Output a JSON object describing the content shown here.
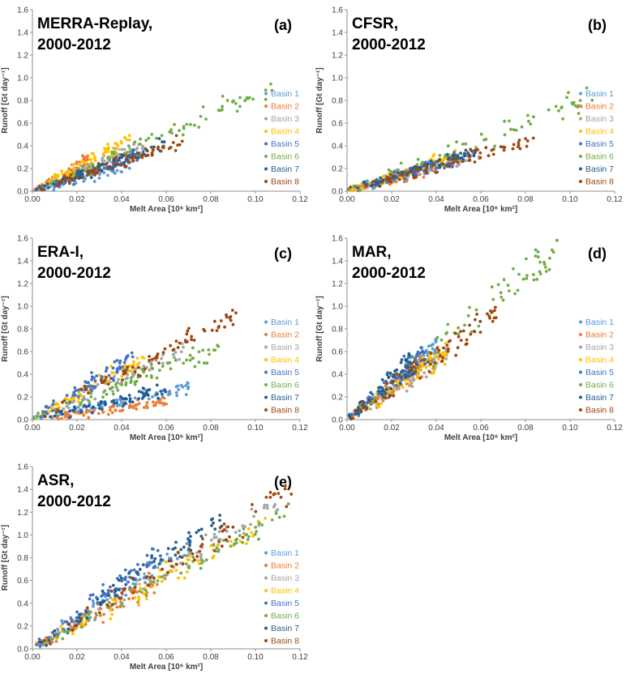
{
  "chart_data": [
    {
      "panel": "(a)",
      "type": "scatter",
      "title_lines": [
        "MERRA-Replay,",
        "2000-2012"
      ],
      "xlabel": "Melt Area [10⁶ km²]",
      "ylabel": "Runoff [Gt day⁻¹]",
      "xlim": [
        0,
        0.12
      ],
      "ylim": [
        0,
        1.6
      ],
      "xticks": [
        "0.00",
        "0.02",
        "0.04",
        "0.06",
        "0.08",
        "0.10",
        "0.12"
      ],
      "yticks": [
        "0.0",
        "0.2",
        "0.4",
        "0.6",
        "0.8",
        "1.0",
        "1.2",
        "1.4",
        "1.6"
      ],
      "legend": [
        "Basin 1",
        "Basin 2",
        "Basin 3",
        "Basin 4",
        "Basin 5",
        "Basin 6",
        "Basin 7",
        "Basin 8"
      ],
      "series": [
        {
          "name": "Basin 1",
          "xmax": 0.045,
          "slope": 5.5,
          "noise": 0.05
        },
        {
          "name": "Basin 2",
          "xmax": 0.025,
          "slope": 11.0,
          "noise": 0.05
        },
        {
          "name": "Basin 3",
          "xmax": 0.05,
          "slope": 8.0,
          "noise": 0.05
        },
        {
          "name": "Basin 4",
          "xmax": 0.045,
          "slope": 10.5,
          "noise": 0.06
        },
        {
          "name": "Basin 5",
          "xmax": 0.05,
          "slope": 6.5,
          "noise": 0.05
        },
        {
          "name": "Basin 6",
          "xmax": 0.108,
          "slope": 8.5,
          "noise": 0.07
        },
        {
          "name": "Basin 7",
          "xmax": 0.06,
          "slope": 7.0,
          "noise": 0.05
        },
        {
          "name": "Basin 8",
          "xmax": 0.068,
          "slope": 6.5,
          "noise": 0.05
        }
      ]
    },
    {
      "panel": "(b)",
      "type": "scatter",
      "title_lines": [
        "CFSR,",
        "2000-2012"
      ],
      "xlabel": "Melt Area [10⁶ km²]",
      "ylabel": "Runoff [Gt day⁻¹]",
      "xlim": [
        0,
        0.12
      ],
      "ylim": [
        0,
        1.6
      ],
      "xticks": [
        "0.00",
        "0.02",
        "0.04",
        "0.06",
        "0.08",
        "0.10",
        "0.12"
      ],
      "yticks": [
        "0.0",
        "0.2",
        "0.4",
        "0.6",
        "0.8",
        "1.0",
        "1.2",
        "1.4",
        "1.6"
      ],
      "legend": [
        "Basin 1",
        "Basin 2",
        "Basin 3",
        "Basin 4",
        "Basin 5",
        "Basin 6",
        "Basin 7",
        "Basin 8"
      ],
      "series": [
        {
          "name": "Basin 1",
          "xmax": 0.04,
          "slope": 6.0,
          "noise": 0.05
        },
        {
          "name": "Basin 2",
          "xmax": 0.05,
          "slope": 5.5,
          "noise": 0.05
        },
        {
          "name": "Basin 3",
          "xmax": 0.06,
          "slope": 5.5,
          "noise": 0.05
        },
        {
          "name": "Basin 4",
          "xmax": 0.05,
          "slope": 6.5,
          "noise": 0.05
        },
        {
          "name": "Basin 5",
          "xmax": 0.05,
          "slope": 6.0,
          "noise": 0.05
        },
        {
          "name": "Basin 6",
          "xmax": 0.112,
          "slope": 7.5,
          "noise": 0.09
        },
        {
          "name": "Basin 7",
          "xmax": 0.06,
          "slope": 6.0,
          "noise": 0.05
        },
        {
          "name": "Basin 8",
          "xmax": 0.085,
          "slope": 5.5,
          "noise": 0.05
        }
      ]
    },
    {
      "panel": "(c)",
      "type": "scatter",
      "title_lines": [
        "ERA-I,",
        "2000-2012"
      ],
      "xlabel": "Melt Area [10⁶ km²]",
      "ylabel": "Runoff [Gt day⁻¹]",
      "xlim": [
        0,
        0.12
      ],
      "ylim": [
        0,
        1.6
      ],
      "xticks": [
        "0.00",
        "0.02",
        "0.04",
        "0.06",
        "0.08",
        "0.10",
        "0.12"
      ],
      "yticks": [
        "0.0",
        "0.2",
        "0.4",
        "0.6",
        "0.8",
        "1.0",
        "1.2",
        "1.4",
        "1.6"
      ],
      "legend": [
        "Basin 1",
        "Basin 2",
        "Basin 3",
        "Basin 4",
        "Basin 5",
        "Basin 6",
        "Basin 7",
        "Basin 8"
      ],
      "series": [
        {
          "name": "Basin 1",
          "xmax": 0.07,
          "slope": 4.0,
          "noise": 0.05
        },
        {
          "name": "Basin 2",
          "xmax": 0.06,
          "slope": 2.5,
          "noise": 0.04
        },
        {
          "name": "Basin 3",
          "xmax": 0.068,
          "slope": 9.0,
          "noise": 0.06
        },
        {
          "name": "Basin 4",
          "xmax": 0.05,
          "slope": 11.0,
          "noise": 0.06
        },
        {
          "name": "Basin 5",
          "xmax": 0.045,
          "slope": 12.0,
          "noise": 0.07
        },
        {
          "name": "Basin 6",
          "xmax": 0.085,
          "slope": 7.5,
          "noise": 0.07
        },
        {
          "name": "Basin 7",
          "xmax": 0.06,
          "slope": 4.5,
          "noise": 0.05
        },
        {
          "name": "Basin 8",
          "xmax": 0.092,
          "slope": 10.0,
          "noise": 0.07
        }
      ]
    },
    {
      "panel": "(d)",
      "type": "scatter",
      "title_lines": [
        "MAR,",
        "2000-2012"
      ],
      "xlabel": "Melt Area [10⁶ km²]",
      "ylabel": "Runoff [Gt day⁻¹]",
      "xlim": [
        0,
        0.12
      ],
      "ylim": [
        0,
        1.6
      ],
      "xticks": [
        "0.00",
        "0.02",
        "0.04",
        "0.06",
        "0.08",
        "0.10",
        "0.12"
      ],
      "yticks": [
        "0.0",
        "0.2",
        "0.4",
        "0.6",
        "0.8",
        "1.0",
        "1.2",
        "1.4",
        "1.6"
      ],
      "legend": [
        "Basin 1",
        "Basin 2",
        "Basin 3",
        "Basin 4",
        "Basin 5",
        "Basin 6",
        "Basin 7",
        "Basin 8"
      ],
      "series": [
        {
          "name": "Basin 1",
          "xmax": 0.04,
          "slope": 16.0,
          "noise": 0.08
        },
        {
          "name": "Basin 2",
          "xmax": 0.035,
          "slope": 14.0,
          "noise": 0.08
        },
        {
          "name": "Basin 3",
          "xmax": 0.045,
          "slope": 13.0,
          "noise": 0.08
        },
        {
          "name": "Basin 4",
          "xmax": 0.045,
          "slope": 13.5,
          "noise": 0.08
        },
        {
          "name": "Basin 5",
          "xmax": 0.035,
          "slope": 17.0,
          "noise": 0.09
        },
        {
          "name": "Basin 6",
          "xmax": 0.095,
          "slope": 16.0,
          "noise": 0.16
        },
        {
          "name": "Basin 7",
          "xmax": 0.03,
          "slope": 17.0,
          "noise": 0.09
        },
        {
          "name": "Basin 8",
          "xmax": 0.068,
          "slope": 14.0,
          "noise": 0.1
        }
      ]
    },
    {
      "panel": "(e)",
      "type": "scatter",
      "title_lines": [
        "ASR,",
        "2000-2012"
      ],
      "xlabel": "Melt Area [10⁶ km²]",
      "ylabel": "Runoff [Gt day⁻¹]",
      "xlim": [
        0,
        0.12
      ],
      "ylim": [
        0,
        1.6
      ],
      "xticks": [
        "0.00",
        "0.02",
        "0.04",
        "0.06",
        "0.08",
        "0.10",
        "0.12"
      ],
      "yticks": [
        "0.0",
        "0.2",
        "0.4",
        "0.6",
        "0.8",
        "1.0",
        "1.2",
        "1.4",
        "1.6"
      ],
      "legend": [
        "Basin 1",
        "Basin 2",
        "Basin 3",
        "Basin 4",
        "Basin 5",
        "Basin 6",
        "Basin 7",
        "Basin 8"
      ],
      "series": [
        {
          "name": "Basin 1",
          "xmax": 0.07,
          "slope": 12.5,
          "noise": 0.09
        },
        {
          "name": "Basin 2",
          "xmax": 0.06,
          "slope": 10.5,
          "noise": 0.08
        },
        {
          "name": "Basin 3",
          "xmax": 0.11,
          "slope": 11.5,
          "noise": 0.09
        },
        {
          "name": "Basin 4",
          "xmax": 0.105,
          "slope": 10.5,
          "noise": 0.09
        },
        {
          "name": "Basin 5",
          "xmax": 0.06,
          "slope": 14.5,
          "noise": 0.09
        },
        {
          "name": "Basin 6",
          "xmax": 0.12,
          "slope": 10.5,
          "noise": 0.09
        },
        {
          "name": "Basin 7",
          "xmax": 0.085,
          "slope": 13.5,
          "noise": 0.09
        },
        {
          "name": "Basin 8",
          "xmax": 0.117,
          "slope": 12.0,
          "noise": 0.1
        }
      ]
    }
  ],
  "colors": {
    "Basin 1": "#5B9BD5",
    "Basin 2": "#ED7D31",
    "Basin 3": "#A5A5A5",
    "Basin 4": "#FFC000",
    "Basin 5": "#4472C4",
    "Basin 6": "#70AD47",
    "Basin 7": "#255E91",
    "Basin 8": "#9E480E"
  }
}
